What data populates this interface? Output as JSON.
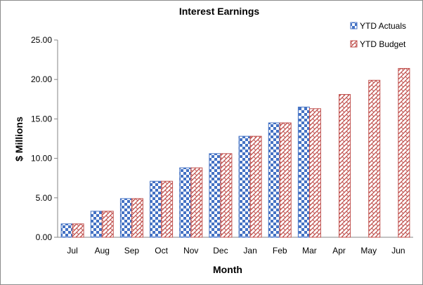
{
  "chart_data": {
    "type": "bar",
    "title": "Interest Earnings",
    "xlabel": "Month",
    "ylabel": "$ Millions",
    "categories": [
      "Jul",
      "Aug",
      "Sep",
      "Oct",
      "Nov",
      "Dec",
      "Jan",
      "Feb",
      "Mar",
      "Apr",
      "May",
      "Jun"
    ],
    "ylim": [
      0,
      25
    ],
    "yticks": [
      "0.00",
      "5.00",
      "10.00",
      "15.00",
      "20.00",
      "25.00"
    ],
    "grid": false,
    "legend_position": "top-right",
    "series": [
      {
        "name": "YTD Actuals",
        "color": "#4472c4",
        "pattern": "checkerboard",
        "values": [
          1.7,
          3.3,
          4.9,
          7.1,
          8.8,
          10.6,
          12.8,
          14.5,
          16.5,
          null,
          null,
          null
        ]
      },
      {
        "name": "YTD Budget",
        "color": "#c0504d",
        "pattern": "woven",
        "values": [
          1.7,
          3.3,
          4.9,
          7.1,
          8.8,
          10.6,
          12.8,
          14.5,
          16.3,
          18.1,
          19.9,
          21.4
        ]
      }
    ]
  }
}
